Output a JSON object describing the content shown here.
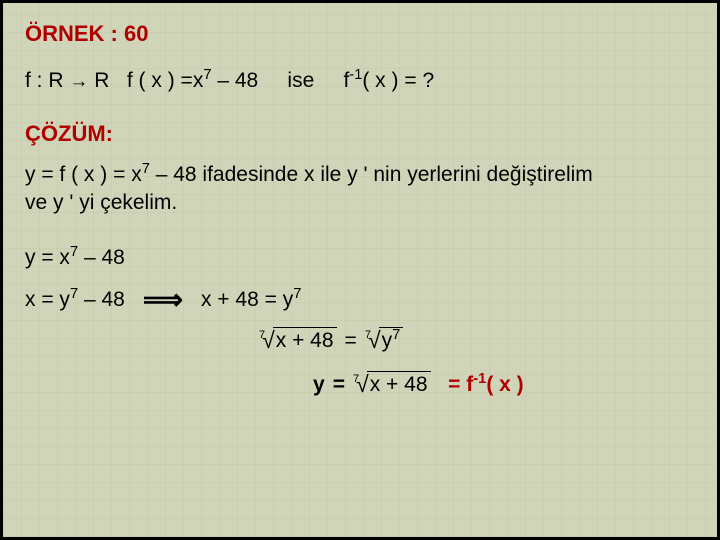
{
  "colors": {
    "background": "#d0d4b8",
    "grid": "rgba(196,188,140,0.25)",
    "accent": "#b00000",
    "text": "#000000",
    "border": "#000000"
  },
  "title": "ÖRNEK : 60",
  "problem": {
    "domain": "f : R",
    "arrow": "→",
    "codomain": "R",
    "fdef_pre": "f ( x ) =x",
    "fdef_exp": "7",
    "fdef_post": " – 48",
    "ise": "ise",
    "finv_pre": "f",
    "finv_exp": "-1",
    "finv_post": "( x ) = ?"
  },
  "cozum": "ÇÖZÜM:",
  "explain": {
    "l1_pre": "y = f ( x ) = x",
    "l1_exp": "7",
    "l1_post": " – 48  ifadesinde x ile y ' nin yerlerini değiştirelim",
    "l2": "ve y ' yi çekelim."
  },
  "eq1": {
    "pre": "y =  x",
    "exp": "7",
    "post": " – 48"
  },
  "eq2": {
    "left_pre": "x =  y",
    "left_exp": "7",
    "left_post": " – 48",
    "right_pre": "x + 48 =  y",
    "right_exp": "7"
  },
  "root": {
    "idx": "7",
    "left_expr": "x + 48",
    "right_expr_pre": "y",
    "right_expr_exp": "7"
  },
  "final": {
    "yvar": "y",
    "idx": "7",
    "expr": "x + 48",
    "eq": "=",
    "res_pre": "f",
    "res_exp": "-1",
    "res_post": "( x )"
  }
}
